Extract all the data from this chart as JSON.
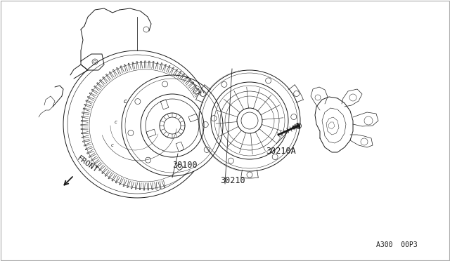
{
  "bg_color": "#ffffff",
  "line_color": "#1a1a1a",
  "label_30210": "30210",
  "label_30210A": "30210A",
  "label_30100": "30100",
  "label_front": "FRONT",
  "label_code": "A300  00P3",
  "figsize": [
    6.4,
    3.72
  ],
  "dpi": 100
}
